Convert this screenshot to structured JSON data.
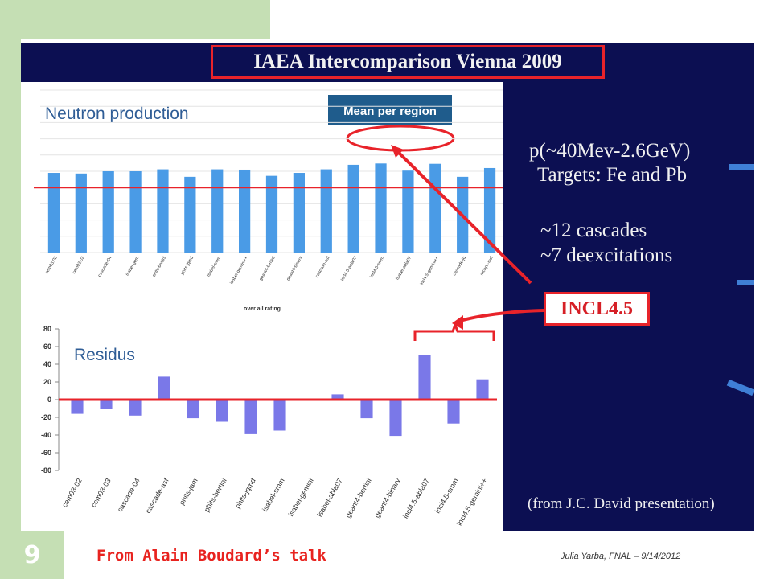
{
  "slide": {
    "number": "9",
    "title": "IAEA Intercomparison Vienna 2009",
    "footer_left": "From Alain Boudard’s talk",
    "footer_right": "Julia Yarba, FNAL – 9/14/2012"
  },
  "right_panel": {
    "line1": "p(~40Mev-2.6GeV)",
    "line2": "Targets: Fe and Pb",
    "line3": "~12 cascades",
    "line4": "~7 deexcitations",
    "incl": "INCL4.5",
    "from": "(from J.C. David presentation)"
  },
  "colors": {
    "panel_bg": "#0c0f52",
    "accent_red": "#e8232a",
    "neutron_bar": "#4a9be6",
    "residus_bar": "#7a78e8",
    "green": "#c5dfb4",
    "annotation_box": "#1f5c8c"
  },
  "chart_data": [
    {
      "type": "bar",
      "title": "Neutron production",
      "annotation": "Mean per region",
      "xlabel": "over all rating",
      "ylabel": "",
      "categories": [
        "cem03.02",
        "cem03.03",
        "cascade-04",
        "isabel-gem",
        "phits-bertini",
        "phits-jqmd",
        "isabel-smm",
        "isabel-gemini++",
        "geant4-bertini",
        "geant4-binary",
        "cascade-asf",
        "incl4.5-abla07",
        "incl4.5-smm",
        "isabel-abla07",
        "incl4.5-gemini++",
        "cascade-jq",
        "mcnpx-incl"
      ],
      "values": [
        2.45,
        2.43,
        2.5,
        2.5,
        2.56,
        2.33,
        2.56,
        2.55,
        2.36,
        2.45,
        2.56,
        2.7,
        2.74,
        2.52,
        2.73,
        2.33,
        2.6
      ],
      "reference_line": 2.0,
      "ylim": [
        0,
        5
      ],
      "grid": true
    },
    {
      "type": "bar",
      "title": "Residus",
      "xlabel": "",
      "ylabel": "",
      "categories": [
        "cem03-02",
        "cem03-03",
        "cascade-04",
        "cascade-asf",
        "phits-jam",
        "phits-bertini",
        "phits-jqmd",
        "isabel-smm",
        "isabel-gemini",
        "isabel-abla07",
        "geant4-bertini",
        "geant4-binary",
        "incl4.5-abla07",
        "incl4.5-smm",
        "incl4.5-gemini++"
      ],
      "values": [
        -16,
        -10,
        -18,
        26,
        -21,
        -25,
        -39,
        -35,
        0,
        6,
        -21,
        -41,
        50,
        -27,
        23
      ],
      "yticks": [
        "80",
        "60",
        "40",
        "20",
        "0",
        "-20",
        "-40",
        "-60",
        "-80"
      ],
      "ylim": [
        -80,
        80
      ],
      "reference_line": 0
    }
  ]
}
